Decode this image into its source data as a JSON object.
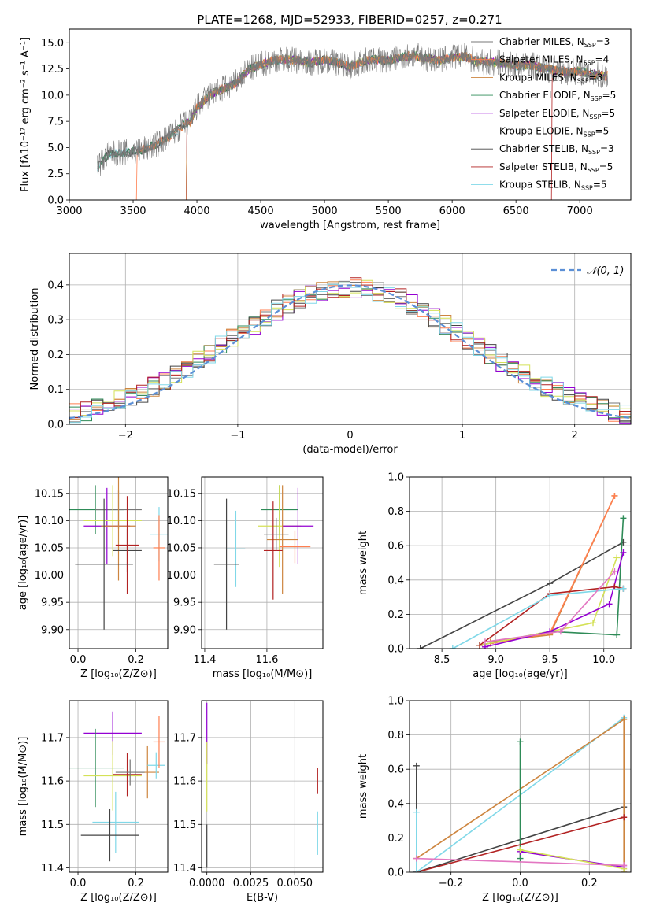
{
  "colors": {
    "Chabrier MILES": "#777777",
    "Salpeter MILES": "#ff7f50",
    "Kroupa MILES": "#cd853f",
    "Chabrier ELODIE": "#2e8b57",
    "Salpeter ELODIE": "#9400d3",
    "Kroupa ELODIE": "#d4e157",
    "Chabrier STELIB": "#444444",
    "Salpeter STELIB": "#b22222",
    "Kroupa STELIB": "#80d8e8",
    "normal": "#5b8fd6",
    "weight_lines": [
      "#555555",
      "#e377c2",
      "#e07b39",
      "#556b2f",
      "#7b3f9e",
      "#c8d63a",
      "#444444",
      "#7f3fbf",
      "#87cefa"
    ]
  },
  "chart_data": [
    {
      "id": "spectrum",
      "type": "line",
      "title": "PLATE=1268, MJD=52933, FIBERID=0257, z=0.271",
      "xlabel": "wavelength [Angstrom, rest frame]",
      "ylabel": "Flux [fλ10⁻¹⁷ erg cm⁻² s⁻¹ A⁻¹]",
      "xlim": [
        3000,
        7400
      ],
      "ylim": [
        0,
        16.3
      ],
      "xticks": [
        3000,
        3500,
        4000,
        4500,
        5000,
        5500,
        6000,
        6500,
        7000
      ],
      "yticks": [
        0.0,
        2.5,
        5.0,
        7.5,
        10.0,
        12.5,
        15.0
      ],
      "grid": false,
      "legend_position": "right",
      "legend": [
        {
          "label": "Chabrier MILES, N",
          "sub": "SSP",
          "tail": "=3",
          "key": "Chabrier MILES"
        },
        {
          "label": "Salpeter MILES, N",
          "sub": "SSP",
          "tail": "=4",
          "key": "Salpeter MILES"
        },
        {
          "label": "Kroupa MILES, N",
          "sub": "SSP",
          "tail": "=3",
          "key": "Kroupa MILES"
        },
        {
          "label": "Chabrier ELODIE, N",
          "sub": "SSP",
          "tail": "=5",
          "key": "Chabrier ELODIE"
        },
        {
          "label": "Salpeter ELODIE, N",
          "sub": "SSP",
          "tail": "=5",
          "key": "Salpeter ELODIE"
        },
        {
          "label": "Kroupa ELODIE, N",
          "sub": "SSP",
          "tail": "=5",
          "key": "Kroupa ELODIE"
        },
        {
          "label": "Chabrier STELIB, N",
          "sub": "SSP",
          "tail": "=3",
          "key": "Chabrier STELIB"
        },
        {
          "label": "Salpeter STELIB, N",
          "sub": "SSP",
          "tail": "=5",
          "key": "Salpeter STELIB"
        },
        {
          "label": "Kroupa STELIB, N",
          "sub": "SSP",
          "tail": "=5",
          "key": "Kroupa STELIB"
        }
      ],
      "continuum_points": [
        [
          3220,
          3.2
        ],
        [
          3300,
          4.3
        ],
        [
          3400,
          4.5
        ],
        [
          3500,
          4.6
        ],
        [
          3600,
          4.9
        ],
        [
          3700,
          5.4
        ],
        [
          3800,
          6.2
        ],
        [
          3900,
          7.2
        ],
        [
          3950,
          7.5
        ],
        [
          4000,
          8.8
        ],
        [
          4100,
          10.0
        ],
        [
          4200,
          10.6
        ],
        [
          4300,
          11.1
        ],
        [
          4400,
          12.4
        ],
        [
          4500,
          12.9
        ],
        [
          4600,
          13.3
        ],
        [
          4700,
          13.4
        ],
        [
          4800,
          13.3
        ],
        [
          4900,
          13.1
        ],
        [
          5000,
          13.4
        ],
        [
          5100,
          13.1
        ],
        [
          5200,
          12.7
        ],
        [
          5300,
          13.2
        ],
        [
          5400,
          13.4
        ],
        [
          5500,
          13.3
        ],
        [
          5600,
          13.6
        ],
        [
          5700,
          13.8
        ],
        [
          5800,
          13.5
        ],
        [
          5900,
          13.3
        ],
        [
          6000,
          13.6
        ],
        [
          6100,
          13.7
        ],
        [
          6200,
          13.2
        ],
        [
          6300,
          13.2
        ],
        [
          6400,
          13.0
        ],
        [
          6500,
          12.8
        ],
        [
          6600,
          12.9
        ],
        [
          6700,
          12.6
        ],
        [
          6800,
          12.4
        ],
        [
          6900,
          12.2
        ],
        [
          7000,
          12.3
        ],
        [
          7100,
          12.0
        ],
        [
          7200,
          11.8
        ],
        [
          7220,
          11.9
        ]
      ],
      "spectrum_start_drops": {
        "Chabrier MILES": 3220,
        "Salpeter MILES": 3530,
        "Kroupa MILES": 3920,
        "Salpeter ELODIE": 3920,
        "Kroupa ELODIE": 3920,
        "Salpeter STELIB": 6780
      }
    },
    {
      "id": "residuals",
      "type": "line",
      "xlabel": "(data-model)/error",
      "ylabel": "Normed distribution",
      "xlim": [
        -2.5,
        2.5
      ],
      "ylim": [
        0,
        0.49
      ],
      "xticks": [
        -2,
        -1,
        0,
        1,
        2
      ],
      "yticks": [
        0.0,
        0.1,
        0.2,
        0.3,
        0.4
      ],
      "grid": true,
      "legend_position": "top-right",
      "normal_label": "𝒩(0, 1)",
      "hist_bins": [
        -2.5,
        2.5,
        0.1
      ]
    },
    {
      "id": "age_vs_Z",
      "type": "scatter",
      "xlabel": "Z [log₁₀(Z/Z⊙)]",
      "ylabel": "age  [log₁₀(age/yr)]",
      "xlim": [
        -0.03,
        0.31
      ],
      "ylim": [
        9.865,
        10.18
      ],
      "xticks": [
        0.0,
        0.2
      ],
      "yticks": [
        9.9,
        9.95,
        10.0,
        10.05,
        10.1,
        10.15
      ],
      "grid": true,
      "points": [
        {
          "key": "Chabrier ELODIE",
          "x": 0.06,
          "y": 10.12,
          "xerr": 0.1,
          "yerr": 0.045
        },
        {
          "key": "Chabrier MILES",
          "x": 0.14,
          "y": 10.12,
          "xerr": 0.08,
          "yerr": 0.035
        },
        {
          "key": "Salpeter ELODIE",
          "x": 0.1,
          "y": 10.09,
          "xerr": 0.08,
          "yerr": 0.07
        },
        {
          "key": "Kroupa ELODIE",
          "x": 0.12,
          "y": 10.1,
          "xerr": 0.1,
          "yerr": 0.065
        },
        {
          "key": "Kroupa MILES",
          "x": 0.14,
          "y": 10.09,
          "xerr": 0.06,
          "yerr": 0.1
        },
        {
          "key": "Chabrier STELIB",
          "x": 0.17,
          "y": 10.045,
          "xerr": 0.05,
          "yerr": 0.04
        },
        {
          "key": "Salpeter STELIB",
          "x": 0.17,
          "y": 10.055,
          "xerr": 0.04,
          "yerr": 0.09
        },
        {
          "key": "Chabrier STELIB",
          "x": 0.09,
          "y": 10.02,
          "xerr": 0.1,
          "yerr": 0.12
        },
        {
          "key": "Kroupa STELIB",
          "x": 0.28,
          "y": 10.075,
          "xerr": 0.03,
          "yerr": 0.05
        },
        {
          "key": "Salpeter MILES",
          "x": 0.28,
          "y": 10.05,
          "xerr": 0.02,
          "yerr": 0.06
        }
      ]
    },
    {
      "id": "age_vs_mass",
      "type": "scatter",
      "xlabel": "mass [log₁₀(M/M⊙)]",
      "ylabel": "",
      "xlim": [
        11.39,
        11.78
      ],
      "ylim": [
        9.865,
        10.18
      ],
      "xticks": [
        11.4,
        11.6
      ],
      "yticks": [
        9.9,
        9.95,
        10.0,
        10.05,
        10.1,
        10.15
      ],
      "grid": true,
      "points": [
        {
          "key": "Chabrier ELODIE",
          "x": 11.64,
          "y": 10.12,
          "xerr": 0.06,
          "yerr": 0.045
        },
        {
          "key": "Kroupa ELODIE",
          "x": 11.64,
          "y": 10.09,
          "xerr": 0.07,
          "yerr": 0.075
        },
        {
          "key": "Salpeter ELODIE",
          "x": 11.7,
          "y": 10.09,
          "xerr": 0.05,
          "yerr": 0.07
        },
        {
          "key": "Kroupa MILES",
          "x": 11.65,
          "y": 10.065,
          "xerr": 0.05,
          "yerr": 0.1
        },
        {
          "key": "Kroupa STELIB",
          "x": 11.5,
          "y": 10.048,
          "xerr": 0.03,
          "yerr": 0.07
        },
        {
          "key": "Salpeter MILES",
          "x": 11.69,
          "y": 10.052,
          "xerr": 0.05,
          "yerr": 0.03
        },
        {
          "key": "Salpeter STELIB",
          "x": 11.62,
          "y": 10.045,
          "xerr": 0.03,
          "yerr": 0.09
        },
        {
          "key": "Chabrier STELIB",
          "x": 11.47,
          "y": 10.02,
          "xerr": 0.04,
          "yerr": 0.12
        },
        {
          "key": "Chabrier MILES",
          "x": 11.63,
          "y": 10.075,
          "xerr": 0.04,
          "yerr": 0.03
        }
      ]
    },
    {
      "id": "weight_vs_age",
      "type": "line",
      "xlabel": "age  [log₁₀(age/yr)]",
      "ylabel": "mass weight",
      "xlim": [
        8.2,
        10.25
      ],
      "ylim": [
        0,
        1.0
      ],
      "xticks": [
        8.5,
        9.0,
        9.5,
        10.0
      ],
      "yticks": [
        0.0,
        0.2,
        0.4,
        0.6,
        0.8,
        1.0
      ],
      "grid": true,
      "series": [
        {
          "key": "Chabrier STELIB",
          "x": [
            8.3,
            9.5,
            10.18
          ],
          "y": [
            0.0,
            0.38,
            0.62
          ]
        },
        {
          "key": "Kroupa MILES",
          "x": [
            8.95,
            9.5,
            10.1
          ],
          "y": [
            0.04,
            0.08,
            0.89
          ]
        },
        {
          "key": "Salpeter MILES",
          "x": [
            8.95,
            9.5,
            10.1
          ],
          "y": [
            0.03,
            0.09,
            0.89
          ]
        },
        {
          "key": "Chabrier ELODIE",
          "x": [
            8.85,
            9.5,
            10.12,
            10.18
          ],
          "y": [
            0.02,
            0.1,
            0.08,
            0.76
          ]
        },
        {
          "key": "Kroupa ELODIE",
          "x": [
            8.85,
            9.5,
            9.9,
            10.12
          ],
          "y": [
            0.02,
            0.1,
            0.15,
            0.53
          ]
        },
        {
          "key": "Salpeter ELODIE",
          "x": [
            8.9,
            9.5,
            10.05,
            10.18
          ],
          "y": [
            0.01,
            0.1,
            0.26,
            0.56
          ]
        },
        {
          "key": "Salpeter STELIB",
          "x": [
            8.85,
            9.5,
            10.1,
            10.18
          ],
          "y": [
            0.02,
            0.32,
            0.36,
            0.35
          ]
        },
        {
          "key": "Kroupa STELIB",
          "x": [
            8.6,
            9.5,
            10.18
          ],
          "y": [
            0.0,
            0.31,
            0.35
          ]
        },
        {
          "key": "pink",
          "x": [
            8.9,
            9.6,
            10.1
          ],
          "y": [
            0.04,
            0.1,
            0.45
          ]
        }
      ]
    },
    {
      "id": "mass_vs_Z",
      "type": "scatter",
      "xlabel": "Z [log₁₀(Z/Z⊙)]",
      "ylabel": "mass [log₁₀(M/M⊙)]",
      "xlim": [
        -0.03,
        0.31
      ],
      "ylim": [
        11.39,
        11.785
      ],
      "xticks": [
        0.0,
        0.2
      ],
      "yticks": [
        11.4,
        11.5,
        11.6,
        11.7
      ],
      "grid": true,
      "points": [
        {
          "key": "Salpeter ELODIE",
          "x": 0.12,
          "y": 11.71,
          "xerr": 0.1,
          "yerr": 0.05
        },
        {
          "key": "Chabrier ELODIE",
          "x": 0.06,
          "y": 11.63,
          "xerr": 0.1,
          "yerr": 0.09
        },
        {
          "key": "Kroupa ELODIE",
          "x": 0.12,
          "y": 11.612,
          "xerr": 0.1,
          "yerr": 0.08
        },
        {
          "key": "Salpeter STELIB",
          "x": 0.17,
          "y": 11.615,
          "xerr": 0.05,
          "yerr": 0.05
        },
        {
          "key": "Kroupa MILES",
          "x": 0.24,
          "y": 11.62,
          "xerr": 0.04,
          "yerr": 0.06
        },
        {
          "key": "Kroupa STELIB",
          "x": 0.27,
          "y": 11.636,
          "xerr": 0.03,
          "yerr": 0.03
        },
        {
          "key": "Salpeter MILES",
          "x": 0.28,
          "y": 11.69,
          "xerr": 0.02,
          "yerr": 0.06
        },
        {
          "key": "Chabrier MILES",
          "x": 0.18,
          "y": 11.62,
          "xerr": 0.05,
          "yerr": 0.03
        },
        {
          "key": "Kroupa STELIB",
          "x": 0.13,
          "y": 11.505,
          "xerr": 0.08,
          "yerr": 0.07
        },
        {
          "key": "Chabrier STELIB",
          "x": 0.11,
          "y": 11.475,
          "xerr": 0.1,
          "yerr": 0.06
        }
      ]
    },
    {
      "id": "mass_vs_EBV",
      "type": "scatter",
      "xlabel": "E(B-V)",
      "ylabel": "",
      "xlim": [
        -0.0003,
        0.0066
      ],
      "ylim": [
        11.39,
        11.785
      ],
      "xticks": [
        0.0,
        0.0025,
        0.005
      ],
      "xticklabels": [
        "0.0000",
        "0.0025",
        "0.0050"
      ],
      "yticks": [
        11.4,
        11.5,
        11.6,
        11.7
      ],
      "grid": true,
      "points": [
        {
          "key": "Salpeter ELODIE",
          "x": 0.0,
          "y": 11.71,
          "xerr": 0,
          "yerr": 0.07
        },
        {
          "key": "Kroupa ELODIE",
          "x": 0.0,
          "y": 11.61,
          "xerr": 0,
          "yerr": 0.08
        },
        {
          "key": "Chabrier STELIB",
          "x": 0.0,
          "y": 11.45,
          "xerr": 0,
          "yerr": 0.05
        },
        {
          "key": "Salpeter STELIB",
          "x": 0.0063,
          "y": 11.6,
          "xerr": 0,
          "yerr": 0.03
        },
        {
          "key": "Kroupa STELIB",
          "x": 0.0063,
          "y": 11.48,
          "xerr": 0,
          "yerr": 0.05
        }
      ]
    },
    {
      "id": "weight_vs_Z",
      "type": "line",
      "xlabel": "Z [log₁₀(Z/Z⊙)]",
      "ylabel": "mass weight",
      "xlim": [
        -0.32,
        0.32
      ],
      "ylim": [
        0,
        1.0
      ],
      "xticks": [
        -0.2,
        0.0,
        0.2
      ],
      "yticks": [
        0.0,
        0.2,
        0.4,
        0.6,
        0.8,
        1.0
      ],
      "grid": true,
      "series": [
        {
          "key": "Chabrier STELIB",
          "x": [
            -0.3,
            0.3
          ],
          "y": [
            0.0,
            0.38
          ]
        },
        {
          "key": "Chabrier STELIB",
          "x": [
            -0.3,
            -0.3
          ],
          "y": [
            0.62,
            0.0
          ]
        },
        {
          "key": "Kroupa STELIB",
          "x": [
            -0.3,
            0.3
          ],
          "y": [
            0.0,
            0.9
          ]
        },
        {
          "key": "Kroupa MILES",
          "x": [
            -0.3,
            0.3,
            0.3
          ],
          "y": [
            0.08,
            0.89,
            0.0
          ]
        },
        {
          "key": "Chabrier ELODIE",
          "x": [
            0.0,
            0.0
          ],
          "y": [
            0.76,
            0.08
          ]
        },
        {
          "key": "Salpeter ELODIE",
          "x": [
            0.0,
            0.3
          ],
          "y": [
            0.12,
            0.03
          ]
        },
        {
          "key": "Kroupa ELODIE",
          "x": [
            0.0,
            0.3
          ],
          "y": [
            0.13,
            0.02
          ]
        },
        {
          "key": "Salpeter STELIB",
          "x": [
            -0.3,
            0.3
          ],
          "y": [
            0.0,
            0.32
          ]
        },
        {
          "key": "Kroupa STELIB",
          "x": [
            -0.3,
            -0.3
          ],
          "y": [
            0.35,
            0.0
          ]
        },
        {
          "key": "pink",
          "x": [
            -0.3,
            0.3
          ],
          "y": [
            0.08,
            0.04
          ]
        }
      ]
    }
  ]
}
